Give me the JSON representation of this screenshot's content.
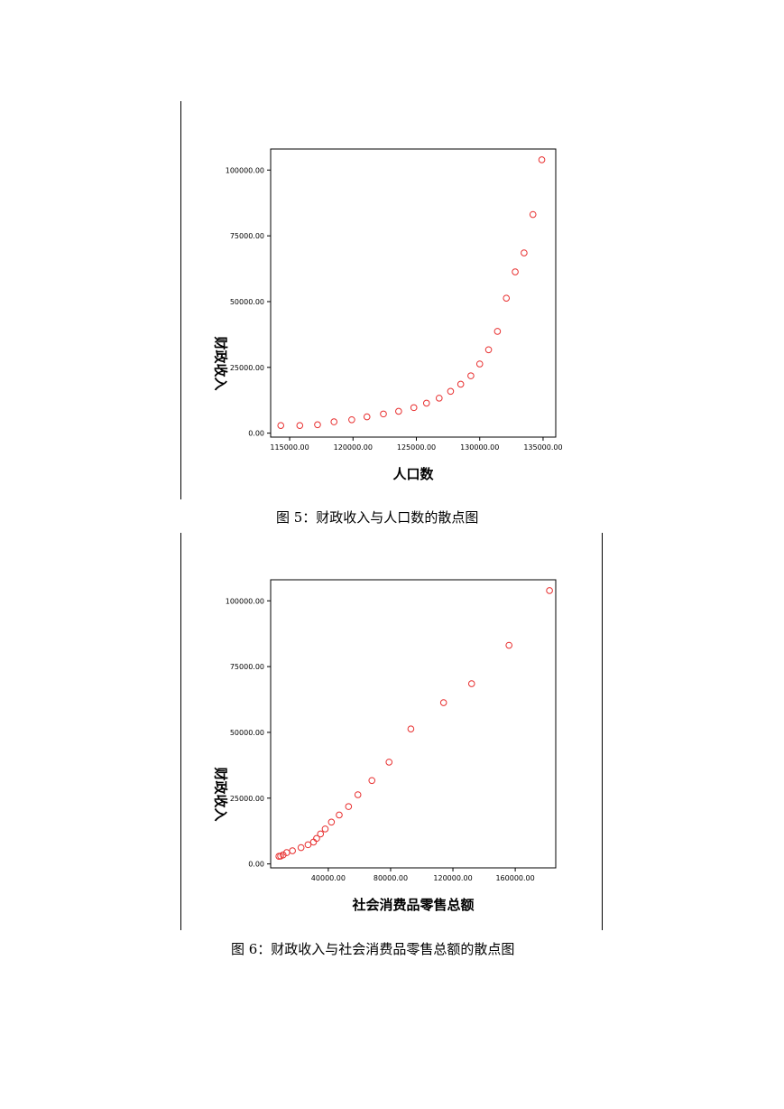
{
  "chart_data": [
    {
      "type": "scatter",
      "xlabel": "人口数",
      "ylabel": "财政收入",
      "xlim": [
        113500,
        136000
      ],
      "ylim": [
        -1500,
        108000
      ],
      "xticks": [
        115000,
        120000,
        125000,
        130000,
        135000
      ],
      "xtick_labels": [
        "115000.00",
        "120000.00",
        "125000.00",
        "130000.00",
        "135000.00"
      ],
      "yticks": [
        0,
        25000,
        50000,
        75000,
        100000
      ],
      "ytick_labels": [
        "0.00",
        "25000.00",
        "50000.00",
        "75000.00",
        "100000.00"
      ],
      "marker_color": "#e83030",
      "points": [
        [
          114300,
          2900
        ],
        [
          115800,
          2900
        ],
        [
          117200,
          3200
        ],
        [
          118500,
          4300
        ],
        [
          119900,
          5100
        ],
        [
          121100,
          6200
        ],
        [
          122400,
          7300
        ],
        [
          123600,
          8300
        ],
        [
          124800,
          9700
        ],
        [
          125800,
          11400
        ],
        [
          126800,
          13300
        ],
        [
          127700,
          15900
        ],
        [
          128500,
          18600
        ],
        [
          129300,
          21800
        ],
        [
          130000,
          26300
        ],
        [
          130700,
          31700
        ],
        [
          131400,
          38700
        ],
        [
          132100,
          51300
        ],
        [
          132800,
          61300
        ],
        [
          133500,
          68500
        ],
        [
          134200,
          83100
        ],
        [
          134900,
          103900
        ]
      ]
    },
    {
      "type": "scatter",
      "xlabel": "社会消费品零售总额",
      "ylabel": "财政收入",
      "xlim": [
        3000,
        186000
      ],
      "ylim": [
        -1500,
        108000
      ],
      "xticks": [
        40000,
        80000,
        120000,
        160000
      ],
      "xtick_labels": [
        "40000.00",
        "80000.00",
        "120000.00",
        "160000.00"
      ],
      "yticks": [
        0,
        25000,
        50000,
        75000,
        100000
      ],
      "ytick_labels": [
        "0.00",
        "25000.00",
        "50000.00",
        "75000.00",
        "100000.00"
      ],
      "marker_color": "#e83030",
      "points": [
        [
          8300,
          2900
        ],
        [
          9400,
          3000
        ],
        [
          11000,
          3400
        ],
        [
          13300,
          4300
        ],
        [
          17000,
          5000
        ],
        [
          22500,
          6200
        ],
        [
          27000,
          7300
        ],
        [
          30500,
          8300
        ],
        [
          32500,
          9700
        ],
        [
          35000,
          11400
        ],
        [
          38000,
          13300
        ],
        [
          42000,
          15900
        ],
        [
          47000,
          18600
        ],
        [
          53000,
          21800
        ],
        [
          59000,
          26300
        ],
        [
          68000,
          31700
        ],
        [
          79000,
          38700
        ],
        [
          93000,
          51300
        ],
        [
          114000,
          61300
        ],
        [
          132000,
          68500
        ],
        [
          156000,
          83100
        ],
        [
          182000,
          103900
        ]
      ]
    }
  ],
  "captions": {
    "fig5": "图 5：财政收入与人口数的散点图",
    "fig6": "图 6：财政收入与社会消费品零售总额的散点图"
  }
}
